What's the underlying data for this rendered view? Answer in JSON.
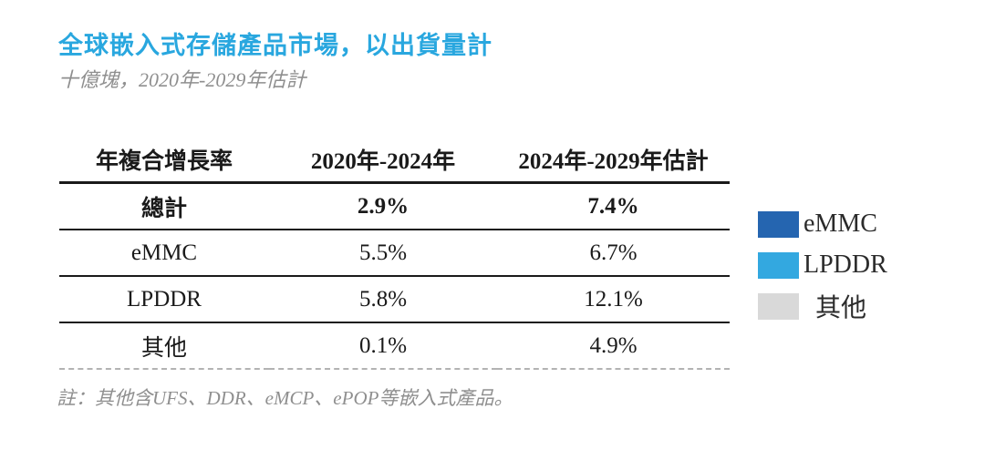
{
  "colors": {
    "title_accent": "#29a7df",
    "emmc": "#2565b0",
    "lpddr": "#33a8e0",
    "other": "#d9d9d9",
    "table_rule": "#1a1a1a",
    "dashed_rule": "#b3b3b3",
    "muted_text": "#8f8f8f"
  },
  "chart_data": {
    "type": "table",
    "title": "全球嵌入式存儲產品市場，以出貨量計",
    "subtitle_units": "十億塊，2020年-2029年估計",
    "columns": [
      "年複合增長率",
      "2020年-2024年",
      "2024年-2029年估計"
    ],
    "rows": [
      {
        "label": "總計",
        "values": [
          "2.9%",
          "7.4%"
        ],
        "emphasis": true
      },
      {
        "label": "eMMC",
        "values": [
          "5.5%",
          "6.7%"
        ],
        "emphasis": false
      },
      {
        "label": "LPDDR",
        "values": [
          "5.8%",
          "12.1%"
        ],
        "emphasis": false
      },
      {
        "label": "其他",
        "values": [
          "0.1%",
          "4.9%"
        ],
        "emphasis": false
      }
    ],
    "legend": [
      {
        "label": "eMMC",
        "color": "#2565b0"
      },
      {
        "label": "LPDDR",
        "color": "#33a8e0"
      },
      {
        "label": "其他",
        "color": "#d9d9d9"
      }
    ],
    "note": "註：其他含UFS、DDR、eMCP、ePOP等嵌入式產品。",
    "layout": {
      "legend_position": "right",
      "grid": "horizontal-rules-only"
    }
  }
}
